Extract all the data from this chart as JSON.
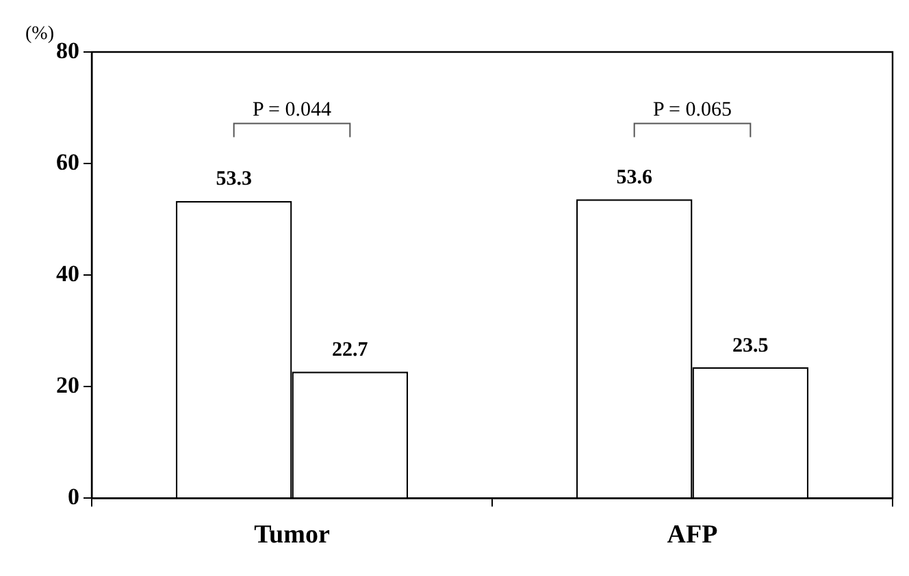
{
  "chart_data": {
    "type": "bar",
    "ylabel": "(%)",
    "categories": [
      "Tumor",
      "AFP"
    ],
    "series": [
      {
        "color": "#ffffff",
        "values": [
          53.3,
          53.6
        ]
      },
      {
        "color": "#ffffff",
        "values": [
          22.7,
          23.5
        ]
      }
    ],
    "ylim": [
      0,
      80
    ],
    "yticks": [
      0,
      20,
      40,
      60,
      80
    ],
    "grid": false,
    "legend": false,
    "data_labels": true,
    "annotations": [
      "P = 0.044",
      "P = 0.065"
    ]
  }
}
